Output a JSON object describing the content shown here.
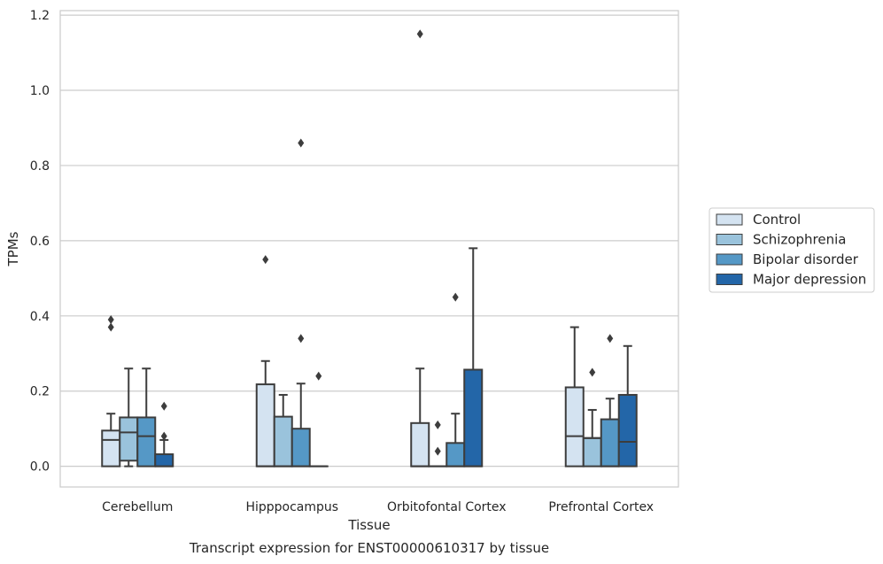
{
  "chart_data": {
    "type": "box",
    "title": "Transcript expression for ENST00000610317 by tissue",
    "xlabel": "Tissue",
    "ylabel": "TPMs",
    "ylim": [
      -0.055,
      1.212
    ],
    "yticks": [
      "0.0",
      "0.2",
      "0.4",
      "0.6",
      "0.8",
      "1.0",
      "1.2"
    ],
    "grid": "horizontal",
    "legend_position": "right",
    "categories": [
      "Cerebellum",
      "Hipppocampus",
      "Orbitofontal Cortex",
      "Prefrontal Cortex"
    ],
    "series": [
      {
        "name": "Control",
        "color": "#d4e3f1",
        "boxes": [
          {
            "q1": 0.0,
            "median": 0.07,
            "q3": 0.095,
            "whislo": 0.0,
            "whishi": 0.14,
            "fliers": [
              0.37,
              0.39
            ]
          },
          {
            "q1": 0.0,
            "median": 0.0,
            "q3": 0.218,
            "whislo": 0.0,
            "whishi": 0.28,
            "fliers": [
              0.55
            ]
          },
          {
            "q1": 0.0,
            "median": 0.0,
            "q3": 0.115,
            "whislo": 0.0,
            "whishi": 0.26,
            "fliers": [
              1.15
            ]
          },
          {
            "q1": 0.0,
            "median": 0.08,
            "q3": 0.21,
            "whislo": 0.0,
            "whishi": 0.37,
            "fliers": []
          }
        ]
      },
      {
        "name": "Schizophrenia",
        "color": "#9ac3dc",
        "boxes": [
          {
            "q1": 0.015,
            "median": 0.09,
            "q3": 0.13,
            "whislo": 0.0,
            "whishi": 0.26,
            "fliers": []
          },
          {
            "q1": 0.0,
            "median": 0.0,
            "q3": 0.132,
            "whislo": 0.0,
            "whishi": 0.19,
            "fliers": []
          },
          {
            "q1": 0.0,
            "median": 0.0,
            "q3": 0.0,
            "whislo": 0.0,
            "whishi": 0.0,
            "fliers": [
              0.04,
              0.11
            ]
          },
          {
            "q1": 0.0,
            "median": 0.075,
            "q3": 0.075,
            "whislo": 0.0,
            "whishi": 0.15,
            "fliers": [
              0.25
            ]
          }
        ]
      },
      {
        "name": "Bipolar disorder",
        "color": "#5598c6",
        "boxes": [
          {
            "q1": 0.0,
            "median": 0.08,
            "q3": 0.13,
            "whislo": 0.0,
            "whishi": 0.26,
            "fliers": []
          },
          {
            "q1": 0.0,
            "median": 0.0,
            "q3": 0.1,
            "whislo": 0.0,
            "whishi": 0.22,
            "fliers": [
              0.34,
              0.86
            ]
          },
          {
            "q1": 0.0,
            "median": 0.0,
            "q3": 0.062,
            "whislo": 0.0,
            "whishi": 0.14,
            "fliers": [
              0.45
            ]
          },
          {
            "q1": 0.0,
            "median": 0.0,
            "q3": 0.125,
            "whislo": 0.0,
            "whishi": 0.18,
            "fliers": [
              0.34
            ]
          }
        ]
      },
      {
        "name": "Major depression",
        "color": "#2366a8",
        "boxes": [
          {
            "q1": 0.0,
            "median": 0.0,
            "q3": 0.032,
            "whislo": 0.0,
            "whishi": 0.07,
            "fliers": [
              0.08,
              0.16
            ]
          },
          {
            "q1": 0.0,
            "median": 0.0,
            "q3": 0.0,
            "whislo": 0.0,
            "whishi": 0.0,
            "fliers": [
              0.24
            ]
          },
          {
            "q1": 0.0,
            "median": 0.0,
            "q3": 0.257,
            "whislo": 0.0,
            "whishi": 0.58,
            "fliers": []
          },
          {
            "q1": 0.0,
            "median": 0.065,
            "q3": 0.19,
            "whislo": 0.0,
            "whishi": 0.32,
            "fliers": []
          }
        ]
      }
    ]
  }
}
